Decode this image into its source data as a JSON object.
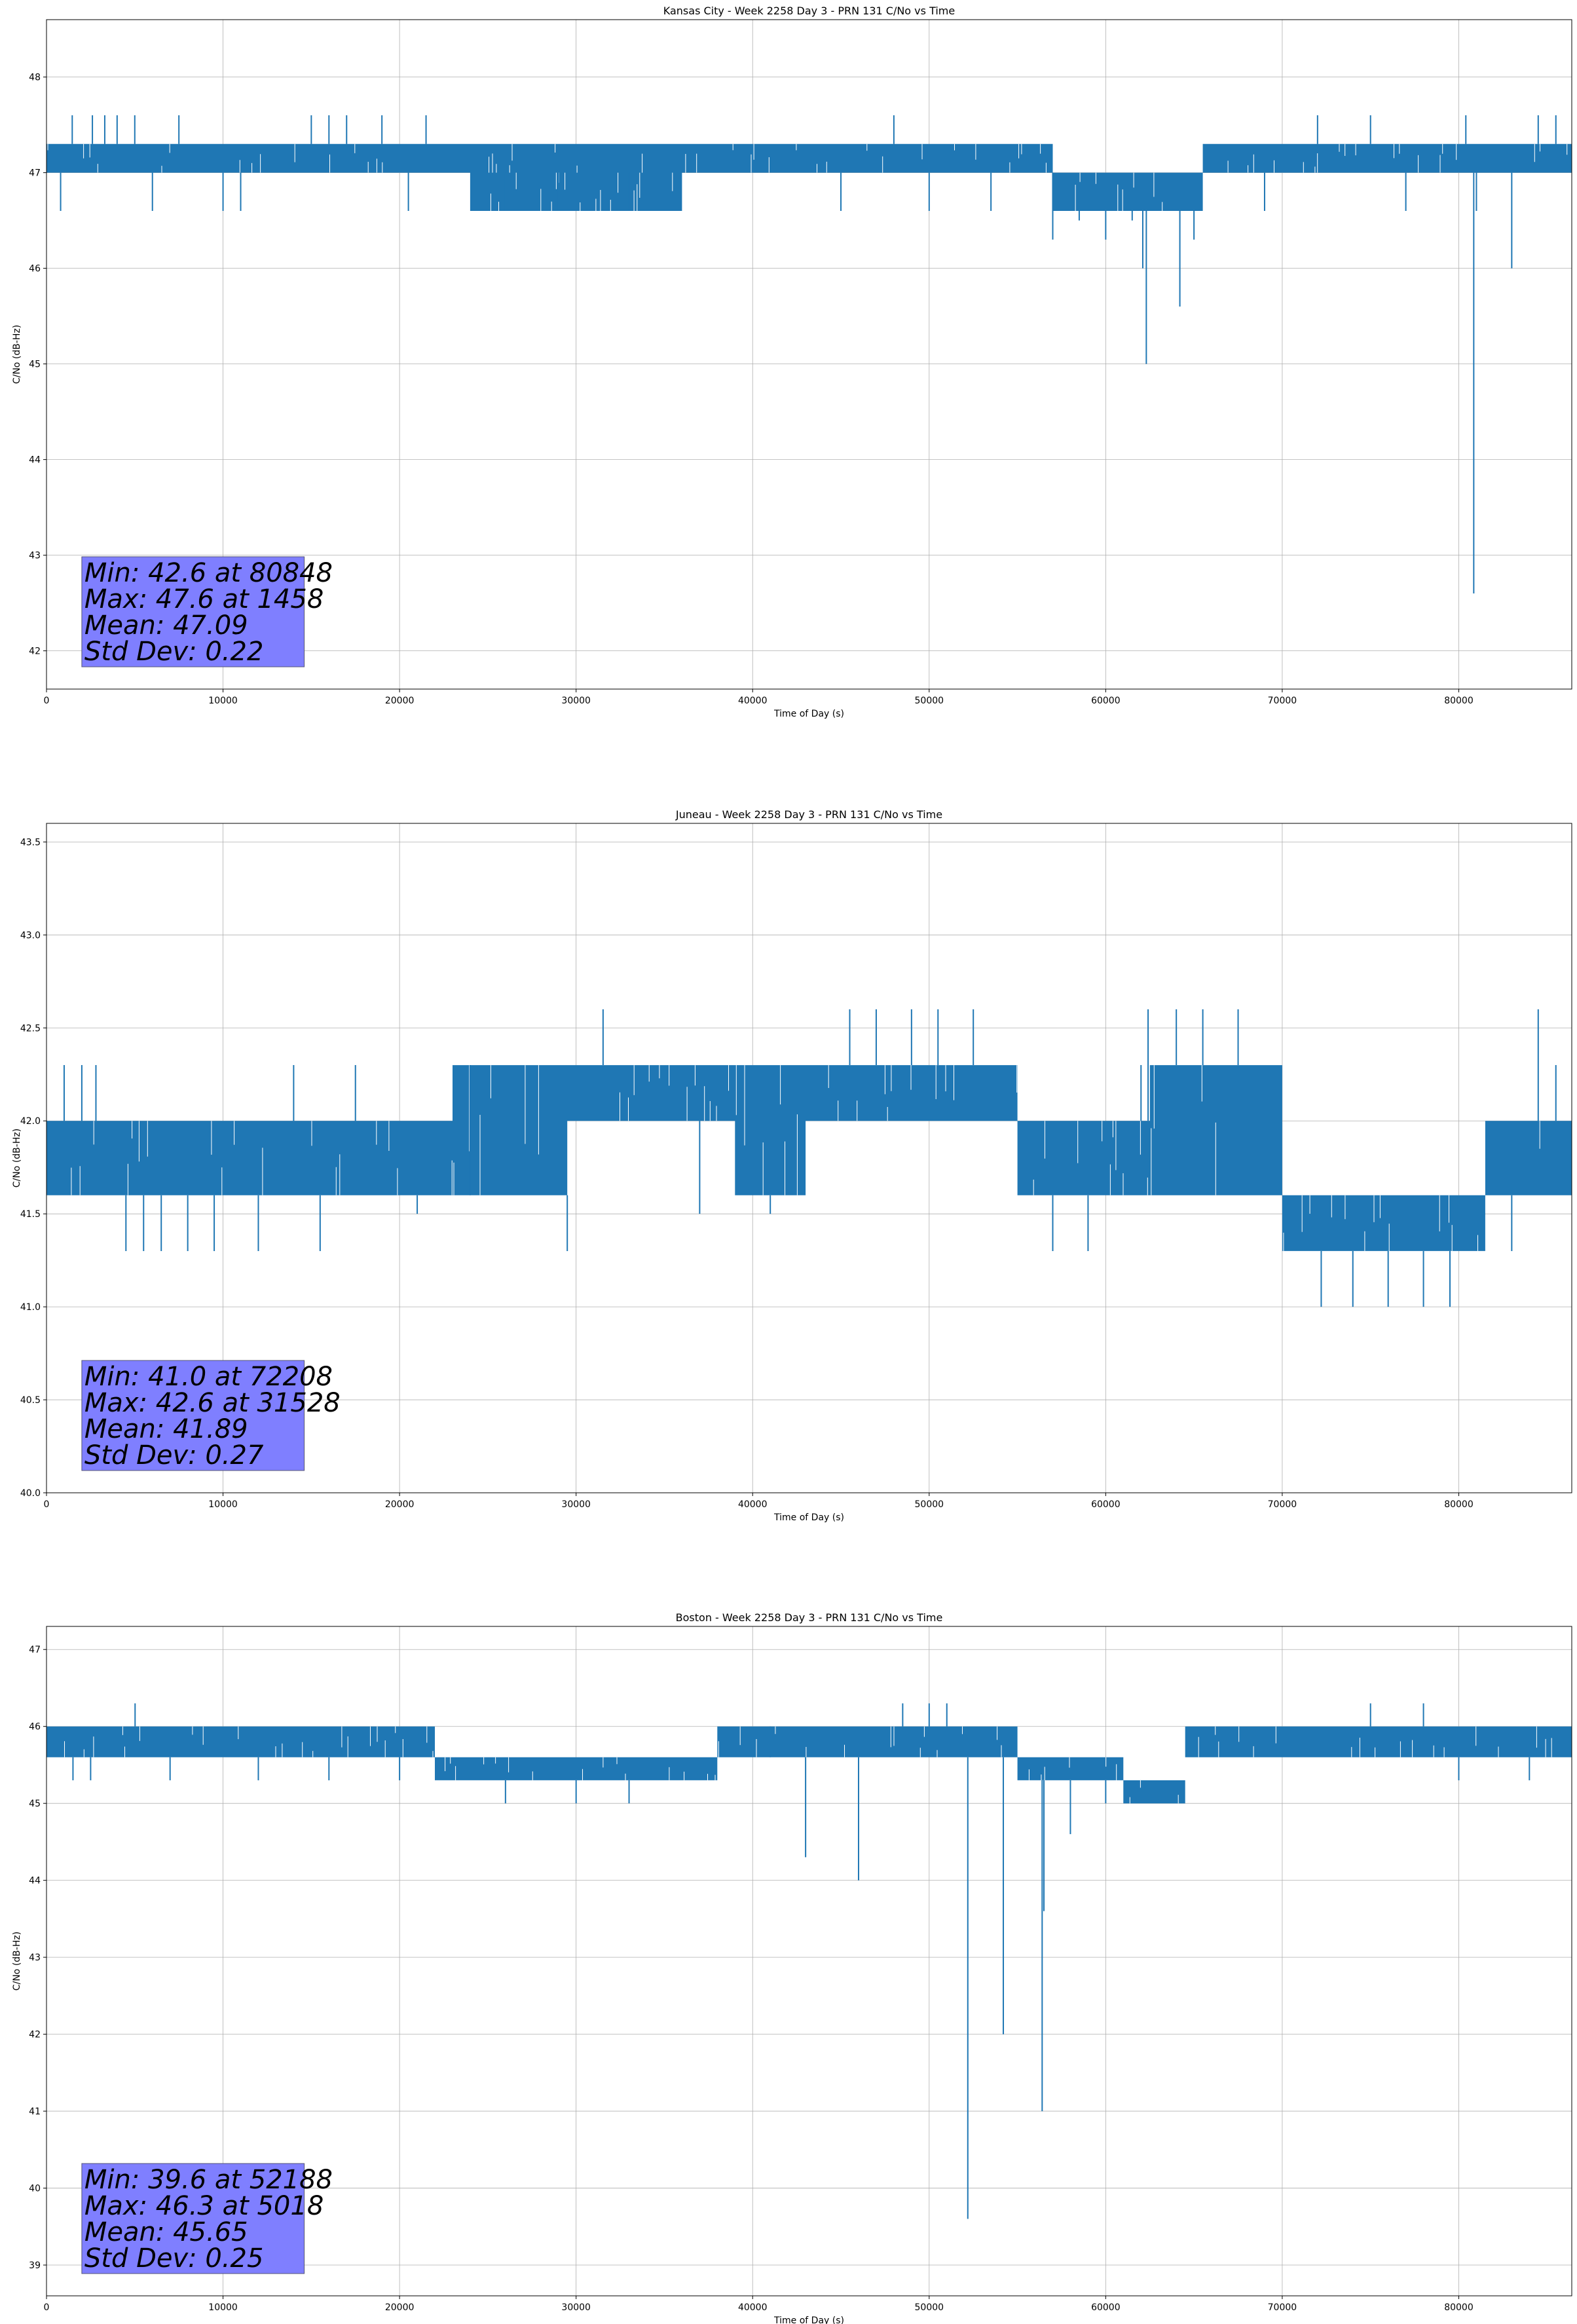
{
  "chart_data": [
    {
      "type": "line",
      "title": "Kansas City - Week 2258 Day 3 - PRN 131 C/No vs Time",
      "xlabel": "Time of Day (s)",
      "ylabel": "C/No (dB-Hz)",
      "xlim": [
        0,
        86400
      ],
      "ylim": [
        41.6,
        48.6
      ],
      "xticks": [
        0,
        10000,
        20000,
        30000,
        40000,
        50000,
        60000,
        70000,
        80000
      ],
      "yticks": [
        42,
        43,
        44,
        45,
        46,
        47,
        48
      ],
      "grid": true,
      "series_color": "#1f77b4",
      "bands": [
        {
          "x0": 0,
          "x1": 55000,
          "lo": 47.0,
          "hi": 47.3
        },
        {
          "x0": 24000,
          "x1": 36000,
          "lo": 46.6,
          "hi": 47.0
        },
        {
          "x0": 55000,
          "x1": 57000,
          "lo": 47.0,
          "hi": 47.3
        },
        {
          "x0": 57000,
          "x1": 65500,
          "lo": 46.6,
          "hi": 47.0
        },
        {
          "x0": 65500,
          "x1": 86400,
          "lo": 47.0,
          "hi": 47.3
        }
      ],
      "spikes": [
        [
          800,
          46.6
        ],
        [
          1458,
          47.6
        ],
        [
          2600,
          47.6
        ],
        [
          3300,
          47.6
        ],
        [
          4000,
          47.6
        ],
        [
          5000,
          47.6
        ],
        [
          6000,
          46.6
        ],
        [
          7500,
          47.6
        ],
        [
          10000,
          46.6
        ],
        [
          11000,
          46.6
        ],
        [
          15000,
          47.6
        ],
        [
          16000,
          47.6
        ],
        [
          17000,
          47.6
        ],
        [
          19000,
          47.6
        ],
        [
          20500,
          46.6
        ],
        [
          21500,
          47.6
        ],
        [
          26000,
          46.6
        ],
        [
          29000,
          46.6
        ],
        [
          33000,
          46.6
        ],
        [
          45000,
          46.6
        ],
        [
          48000,
          47.6
        ],
        [
          50000,
          46.6
        ],
        [
          53500,
          46.6
        ],
        [
          57000,
          46.3
        ],
        [
          58500,
          46.5
        ],
        [
          60000,
          46.3
        ],
        [
          61500,
          46.5
        ],
        [
          62100,
          46.0
        ],
        [
          62300,
          45.0
        ],
        [
          64200,
          45.6
        ],
        [
          65000,
          46.3
        ],
        [
          69000,
          46.6
        ],
        [
          72000,
          47.6
        ],
        [
          75000,
          47.6
        ],
        [
          77000,
          46.6
        ],
        [
          80400,
          47.6
        ],
        [
          80848,
          42.6
        ],
        [
          81000,
          46.6
        ],
        [
          83000,
          46.0
        ],
        [
          84500,
          47.6
        ],
        [
          85500,
          47.6
        ]
      ],
      "stats": {
        "min": "Min: 42.6 at 80848",
        "max": "Max: 47.6 at 1458",
        "mean": "Mean: 47.09",
        "std": "Std Dev: 0.22"
      }
    },
    {
      "type": "line",
      "title": "Juneau - Week 2258 Day 3 - PRN 131 C/No vs Time",
      "xlabel": "Time of Day (s)",
      "ylabel": "C/No (dB-Hz)",
      "xlim": [
        0,
        86400
      ],
      "ylim": [
        40.0,
        43.6
      ],
      "xticks": [
        0,
        10000,
        20000,
        30000,
        40000,
        50000,
        60000,
        70000,
        80000
      ],
      "yticks": [
        40.0,
        40.5,
        41.0,
        41.5,
        42.0,
        42.5,
        43.0,
        43.5
      ],
      "grid": true,
      "series_color": "#1f77b4",
      "bands": [
        {
          "x0": 0,
          "x1": 23000,
          "lo": 41.6,
          "hi": 42.0
        },
        {
          "x0": 23000,
          "x1": 29500,
          "lo": 41.6,
          "hi": 42.3
        },
        {
          "x0": 29500,
          "x1": 39000,
          "lo": 42.0,
          "hi": 42.3
        },
        {
          "x0": 39000,
          "x1": 43000,
          "lo": 41.6,
          "hi": 42.3
        },
        {
          "x0": 43000,
          "x1": 55000,
          "lo": 42.0,
          "hi": 42.3
        },
        {
          "x0": 55000,
          "x1": 62500,
          "lo": 41.6,
          "hi": 42.0
        },
        {
          "x0": 62500,
          "x1": 70000,
          "lo": 41.6,
          "hi": 42.3
        },
        {
          "x0": 70000,
          "x1": 81500,
          "lo": 41.3,
          "hi": 41.6
        },
        {
          "x0": 81500,
          "x1": 86400,
          "lo": 41.6,
          "hi": 42.0
        }
      ],
      "spikes": [
        [
          1000,
          42.3
        ],
        [
          2000,
          42.3
        ],
        [
          2800,
          42.3
        ],
        [
          4500,
          41.3
        ],
        [
          5500,
          41.3
        ],
        [
          6500,
          41.3
        ],
        [
          8000,
          41.3
        ],
        [
          9500,
          41.3
        ],
        [
          12000,
          41.3
        ],
        [
          14000,
          42.3
        ],
        [
          15500,
          41.3
        ],
        [
          17500,
          42.3
        ],
        [
          21000,
          41.5
        ],
        [
          24000,
          42.3
        ],
        [
          29500,
          41.3
        ],
        [
          31528,
          42.6
        ],
        [
          37000,
          41.5
        ],
        [
          41000,
          41.5
        ],
        [
          45500,
          42.6
        ],
        [
          47000,
          42.6
        ],
        [
          49000,
          42.6
        ],
        [
          50500,
          42.6
        ],
        [
          52500,
          42.6
        ],
        [
          57000,
          41.3
        ],
        [
          59000,
          41.3
        ],
        [
          62000,
          42.3
        ],
        [
          62400,
          42.6
        ],
        [
          64000,
          42.6
        ],
        [
          65500,
          42.6
        ],
        [
          67500,
          42.6
        ],
        [
          72208,
          41.0
        ],
        [
          74000,
          41.0
        ],
        [
          76000,
          41.0
        ],
        [
          78000,
          41.0
        ],
        [
          79500,
          41.0
        ],
        [
          83000,
          41.3
        ],
        [
          84500,
          42.6
        ],
        [
          85500,
          42.3
        ]
      ],
      "stats": {
        "min": "Min: 41.0 at 72208",
        "max": "Max: 42.6 at 31528",
        "mean": "Mean: 41.89",
        "std": "Std Dev: 0.27"
      }
    },
    {
      "type": "line",
      "title": "Boston - Week 2258 Day 3 - PRN 131 C/No vs Time",
      "xlabel": "Time of Day (s)",
      "ylabel": "C/No (dB-Hz)",
      "xlim": [
        0,
        86400
      ],
      "ylim": [
        38.6,
        47.3
      ],
      "xticks": [
        0,
        10000,
        20000,
        30000,
        40000,
        50000,
        60000,
        70000,
        80000
      ],
      "yticks": [
        39,
        40,
        41,
        42,
        43,
        44,
        45,
        46,
        47
      ],
      "grid": true,
      "series_color": "#1f77b4",
      "bands": [
        {
          "x0": 0,
          "x1": 22000,
          "lo": 45.6,
          "hi": 46.0
        },
        {
          "x0": 22000,
          "x1": 38000,
          "lo": 45.3,
          "hi": 45.6
        },
        {
          "x0": 38000,
          "x1": 55000,
          "lo": 45.6,
          "hi": 46.0
        },
        {
          "x0": 55000,
          "x1": 61000,
          "lo": 45.3,
          "hi": 45.6
        },
        {
          "x0": 61000,
          "x1": 64500,
          "lo": 45.0,
          "hi": 45.3
        },
        {
          "x0": 64500,
          "x1": 86400,
          "lo": 45.6,
          "hi": 46.0
        }
      ],
      "spikes": [
        [
          1500,
          45.3
        ],
        [
          2500,
          45.3
        ],
        [
          5018,
          46.3
        ],
        [
          7000,
          45.3
        ],
        [
          12000,
          45.3
        ],
        [
          16000,
          45.3
        ],
        [
          20000,
          45.3
        ],
        [
          26000,
          45.0
        ],
        [
          30000,
          45.0
        ],
        [
          33000,
          45.0
        ],
        [
          41000,
          46.0
        ],
        [
          43000,
          44.3
        ],
        [
          46000,
          44.0
        ],
        [
          48500,
          46.3
        ],
        [
          50000,
          46.3
        ],
        [
          51000,
          46.3
        ],
        [
          52188,
          39.6
        ],
        [
          54200,
          42.0
        ],
        [
          56400,
          41.0
        ],
        [
          56500,
          43.6
        ],
        [
          58000,
          44.6
        ],
        [
          60000,
          45.0
        ],
        [
          75000,
          46.3
        ],
        [
          78000,
          46.3
        ],
        [
          80000,
          45.3
        ],
        [
          84000,
          45.3
        ]
      ],
      "stats": {
        "min": "Min: 39.6 at 52188",
        "max": "Max: 46.3 at 5018",
        "mean": "Mean: 45.65",
        "std": "Std Dev: 0.25"
      }
    }
  ]
}
